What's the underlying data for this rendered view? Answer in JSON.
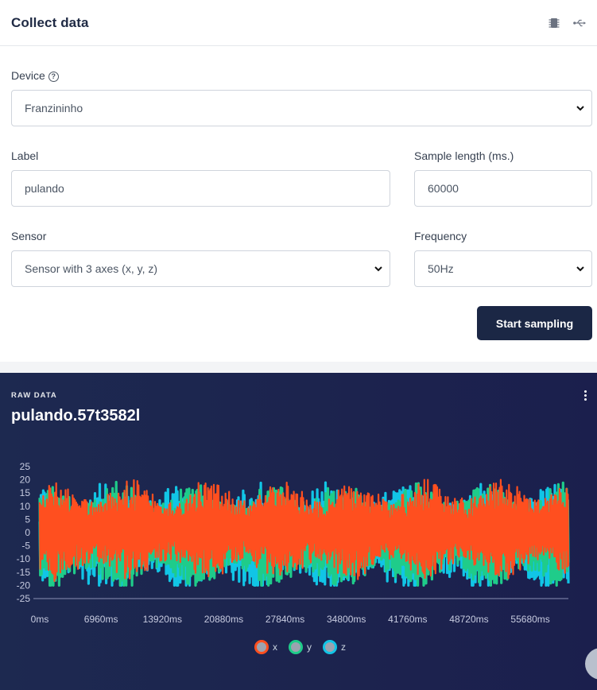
{
  "header": {
    "title": "Collect data",
    "icons": [
      "chip-icon",
      "usb-icon"
    ]
  },
  "form": {
    "device_label": "Device",
    "device_value": "Franzininho",
    "label_label": "Label",
    "label_value": "pulando",
    "length_label": "Sample length (ms.)",
    "length_value": "60000",
    "sensor_label": "Sensor",
    "sensor_value": "Sensor with 3 axes (x, y, z)",
    "frequency_label": "Frequency",
    "frequency_value": "50Hz",
    "start_button": "Start sampling"
  },
  "raw": {
    "tag": "RAW DATA",
    "title": "pulando.57t3582l"
  },
  "colors": {
    "x": "#ff4f1f",
    "y": "#1fcc8a",
    "z": "#11c5e6",
    "button": "#1b2745"
  },
  "chart_data": {
    "type": "line",
    "x_ticks": [
      "0ms",
      "6960ms",
      "13920ms",
      "20880ms",
      "27840ms",
      "34800ms",
      "41760ms",
      "48720ms",
      "55680ms"
    ],
    "y_ticks": [
      "25",
      "20",
      "15",
      "10",
      "5",
      "0",
      "-5",
      "-10",
      "-15",
      "-20",
      "-25"
    ],
    "ylim": [
      -25,
      25
    ],
    "xlim_ms": [
      0,
      60000
    ],
    "series": [
      {
        "name": "x",
        "color": "#ff4f1f",
        "range": [
          -20,
          20
        ]
      },
      {
        "name": "y",
        "color": "#1fcc8a",
        "range": [
          -20,
          18
        ]
      },
      {
        "name": "z",
        "color": "#11c5e6",
        "range": [
          -20,
          20
        ]
      }
    ]
  }
}
